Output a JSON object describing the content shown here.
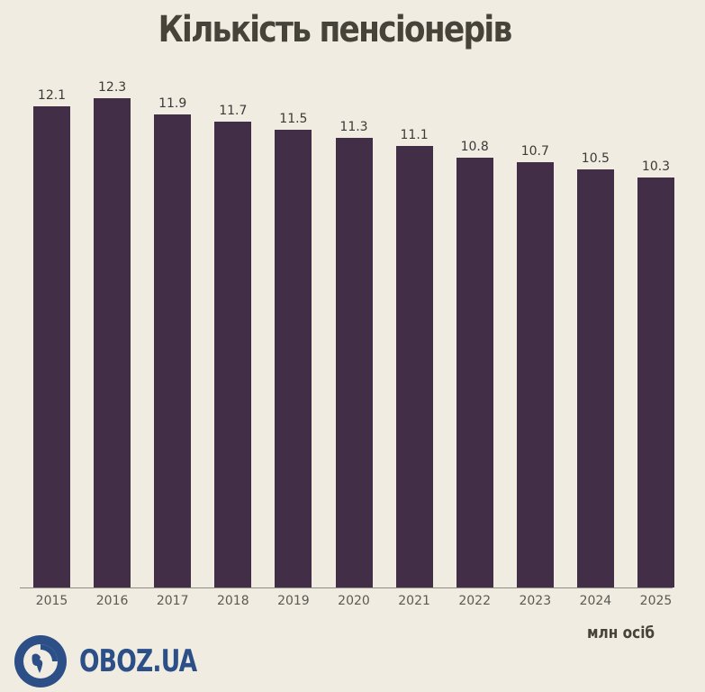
{
  "title": "Кількість пенсіонерів",
  "unit_label": "млн осіб",
  "brand": {
    "name": "OBOZ.UA",
    "color": "#2b4f86",
    "icon": "globe-icon"
  },
  "colors": {
    "bar": "#432e48",
    "background": "#f0ece2",
    "title": "#45433a"
  },
  "chart_data": {
    "type": "bar",
    "title": "Кількість пенсіонерів",
    "xlabel": "",
    "ylabel": "млн осіб",
    "categories": [
      "2015",
      "2016",
      "2017",
      "2018",
      "2019",
      "2020",
      "2021",
      "2022",
      "2023",
      "2024",
      "2025"
    ],
    "values": [
      12.1,
      12.3,
      11.9,
      11.7,
      11.5,
      11.3,
      11.1,
      10.8,
      10.7,
      10.5,
      10.3
    ],
    "value_labels": [
      "12.1",
      "12.3",
      "11.9",
      "11.7",
      "11.5",
      "11.3",
      "11.1",
      "10.8",
      "10.7",
      "10.5",
      "10.3"
    ],
    "ylim": [
      0,
      12.3
    ],
    "grid": false,
    "legend": null
  }
}
